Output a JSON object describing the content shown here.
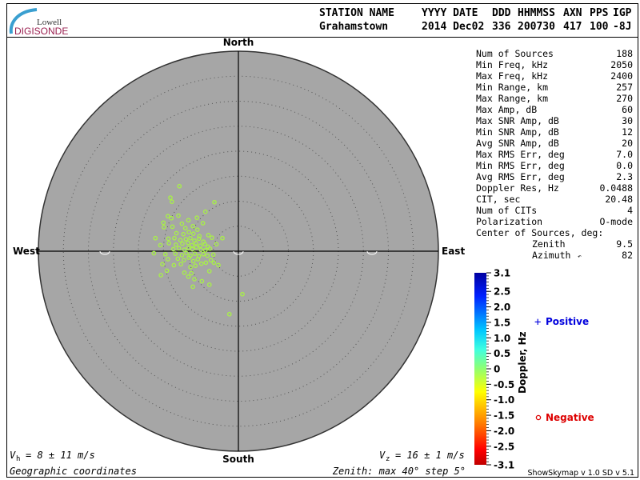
{
  "logo": {
    "line1": "Lowell",
    "line2": "DIGISONDE"
  },
  "header": {
    "labels": [
      "STATION NAME",
      "YYYY DATE",
      "DDD",
      "HHMMSS",
      "AXN",
      "PPS",
      "IGP"
    ],
    "values": [
      "Grahamstown",
      "2014 Dec02",
      "336",
      "200730",
      "417",
      "100",
      "-8J"
    ]
  },
  "directions": {
    "north": "North",
    "south": "South",
    "east": "East",
    "west": "West"
  },
  "stats": [
    {
      "label": "Num of Sources",
      "value": "188"
    },
    {
      "label": "Min Freq, kHz",
      "value": "2050"
    },
    {
      "label": "Max Freq, kHz",
      "value": "2400"
    },
    {
      "label": "Min Range, km",
      "value": "257"
    },
    {
      "label": "Max Range, km",
      "value": "270"
    },
    {
      "label": "Max Amp, dB",
      "value": "60"
    },
    {
      "label": "Max SNR Amp, dB",
      "value": "30"
    },
    {
      "label": "Min SNR Amp, dB",
      "value": "12"
    },
    {
      "label": "Avg SNR Amp, dB",
      "value": "20"
    },
    {
      "label": "Max RMS Err, deg",
      "value": "7.0"
    },
    {
      "label": "Min RMS Err, deg",
      "value": "0.0"
    },
    {
      "label": "Avg RMS Err, deg",
      "value": "2.3"
    },
    {
      "label": "Doppler Res, Hz",
      "value": "0.0488"
    },
    {
      "label": "CIT, sec",
      "value": "20.48"
    },
    {
      "label": "Num of CITs",
      "value": "4"
    },
    {
      "label": "Polarization",
      "value": "O-mode"
    }
  ],
  "center": {
    "heading": "Center of Sources, deg:",
    "zenith_label": "Zenith",
    "zenith": "9.5",
    "azimuth_label": "Azimuth",
    "azimuth": "82"
  },
  "legend": {
    "positive": "Positive",
    "negative": "Negative",
    "positive_color": "#0000dd",
    "negative_color": "#dd0000"
  },
  "footer": {
    "vh": "= 8 ± 11 m/s",
    "vh_sym": "V",
    "vh_sub": "h",
    "vz": "= 16 ± 1 m/s",
    "vz_sym": "V",
    "vz_sub": "z",
    "coords": "Geographic coordinates",
    "zenith_info": "Zenith: max 40°  step 5°",
    "version": "ShowSkymap v 1.0   SD v 5.1"
  },
  "chart_data": {
    "type": "scatter",
    "projection": "polar sky map, zenith angle radial, azimuth from North",
    "zenith_max_deg": 40,
    "zenith_step_deg": 5,
    "point_units": "degrees east (x) / north (y) of zenith",
    "point_color": "#a8f048",
    "point_symbol": "circle (negative Doppler)",
    "colorbar": {
      "label": "Doppler, Hz",
      "range": [
        -3.1,
        3.1
      ],
      "ticks": [
        "3.1",
        "2.5",
        "2.0",
        "1.5",
        "1.0",
        "0.5",
        "0",
        "-0.5",
        "-1.0",
        "-1.5",
        "-2.0",
        "-2.5",
        "-3.1"
      ],
      "tick_values": [
        3.1,
        2.5,
        2.0,
        1.5,
        1.0,
        0.5,
        0,
        -0.5,
        -1.0,
        -1.5,
        -2.0,
        -2.5,
        -3.1
      ]
    },
    "points": [
      [
        -11.8,
        13.0
      ],
      [
        -13.6,
        10.7
      ],
      [
        -13.3,
        9.9
      ],
      [
        -4.8,
        9.8
      ],
      [
        -6.6,
        7.9
      ],
      [
        -14.1,
        7.0
      ],
      [
        -13.4,
        6.6
      ],
      [
        -12.0,
        7.1
      ],
      [
        -10.0,
        6.2
      ],
      [
        -8.3,
        6.7
      ],
      [
        -7.1,
        5.6
      ],
      [
        -15.0,
        5.7
      ],
      [
        -14.9,
        4.8
      ],
      [
        -13.2,
        4.9
      ],
      [
        -11.3,
        5.5
      ],
      [
        -10.6,
        4.6
      ],
      [
        -9.1,
        5.0
      ],
      [
        -8.2,
        4.3
      ],
      [
        -12.4,
        3.6
      ],
      [
        -11.0,
        3.4
      ],
      [
        -9.9,
        3.8
      ],
      [
        -9.0,
        3.5
      ],
      [
        -7.8,
        3.0
      ],
      [
        -6.0,
        3.2
      ],
      [
        -16.6,
        2.6
      ],
      [
        -14.0,
        2.5
      ],
      [
        -12.8,
        2.6
      ],
      [
        -11.6,
        2.2
      ],
      [
        -10.5,
        2.4
      ],
      [
        -9.6,
        2.6
      ],
      [
        -8.8,
        2.1
      ],
      [
        -7.9,
        2.5
      ],
      [
        -7.0,
        1.9
      ],
      [
        -5.3,
        2.7
      ],
      [
        -3.2,
        2.6
      ],
      [
        -15.6,
        1.2
      ],
      [
        -13.9,
        1.6
      ],
      [
        -12.5,
        1.3
      ],
      [
        -11.2,
        1.5
      ],
      [
        -10.1,
        1.7
      ],
      [
        -9.3,
        1.2
      ],
      [
        -8.5,
        1.6
      ],
      [
        -7.6,
        1.1
      ],
      [
        -6.7,
        1.4
      ],
      [
        -6.1,
        0.9
      ],
      [
        -4.4,
        1.4
      ],
      [
        -13.0,
        0.4
      ],
      [
        -11.9,
        0.6
      ],
      [
        -10.8,
        0.3
      ],
      [
        -10.0,
        0.7
      ],
      [
        -9.2,
        0.4
      ],
      [
        -8.4,
        0.8
      ],
      [
        -7.5,
        0.3
      ],
      [
        -6.6,
        0.2
      ],
      [
        -5.7,
        0.5
      ],
      [
        -16.9,
        -0.4
      ],
      [
        -14.6,
        -0.6
      ],
      [
        -12.6,
        -0.5
      ],
      [
        -11.3,
        -0.8
      ],
      [
        -10.4,
        -0.4
      ],
      [
        -9.6,
        -0.9
      ],
      [
        -8.7,
        -0.5
      ],
      [
        -7.9,
        -1.0
      ],
      [
        -7.0,
        -0.6
      ],
      [
        -6.2,
        -0.9
      ],
      [
        -5.0,
        -0.7
      ],
      [
        -14.1,
        -1.6
      ],
      [
        -12.1,
        -1.5
      ],
      [
        -10.9,
        -1.8
      ],
      [
        -9.9,
        -1.3
      ],
      [
        -9.0,
        -2.0
      ],
      [
        -8.1,
        -1.6
      ],
      [
        -6.5,
        -2.3
      ],
      [
        -5.5,
        -1.8
      ],
      [
        -4.9,
        -2.3
      ],
      [
        -15.2,
        -2.6
      ],
      [
        -12.9,
        -2.8
      ],
      [
        -11.5,
        -2.6
      ],
      [
        -9.6,
        -3.2
      ],
      [
        -8.6,
        -2.9
      ],
      [
        -7.4,
        -2.5
      ],
      [
        -4.0,
        -2.8
      ],
      [
        -14.3,
        -3.9
      ],
      [
        -10.8,
        -4.3
      ],
      [
        -9.4,
        -4.4
      ],
      [
        -5.8,
        -4.0
      ],
      [
        -15.5,
        -4.8
      ],
      [
        -10.0,
        -5.1
      ],
      [
        -8.8,
        -5.6
      ],
      [
        -7.3,
        -6.0
      ],
      [
        -5.8,
        -6.7
      ],
      [
        -9.1,
        -7.1
      ],
      [
        0.8,
        -8.6
      ],
      [
        -1.8,
        -12.6
      ]
    ]
  }
}
